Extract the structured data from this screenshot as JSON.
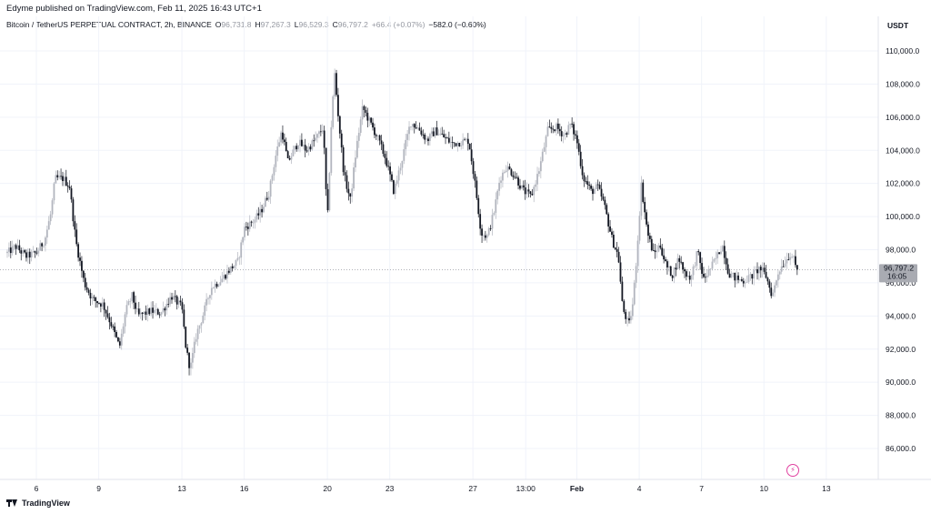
{
  "header": {
    "publisher": "Edyme published on TradingView.com, Feb 11, 2025 16:43 UTC+1"
  },
  "legend": {
    "symbol": "Bitcoin / TetherUS PERPETUAL CONTRACT, 2h, BINANCE",
    "open_key": "O",
    "open": "96,731.8",
    "high_key": "H",
    "high": "97,267.3",
    "low_key": "L",
    "low": "96,529.3",
    "close_key": "C",
    "close": "96,797.2",
    "change": "+66.4 (+0.07%)",
    "day_change": "−582.0 (−0.60%)"
  },
  "currency": "USDT",
  "price_tag": {
    "price": "96,797.2",
    "countdown": "16:05"
  },
  "footer": {
    "brand": "TradingView",
    "flash_icon": "lightning-icon"
  },
  "colors": {
    "up_candle": "#b2b5be",
    "down_candle": "#131722",
    "grid": "#f0f3fa",
    "price_tag": "#a9abb2"
  },
  "chart_data": {
    "type": "candlestick",
    "title": "",
    "interval": "2h",
    "ylim": [
      84500,
      111000
    ],
    "y_ticks": [
      "110,000.0",
      "108,000.0",
      "106,000.0",
      "104,000.0",
      "102,000.0",
      "100,000.0",
      "98,000.0",
      "96,000.0",
      "94,000.0",
      "92,000.0",
      "90,000.0",
      "88,000.0",
      "86,000.0"
    ],
    "x_ticks": [
      {
        "label": "6",
        "day": 6
      },
      {
        "label": "9",
        "day": 9
      },
      {
        "label": "13",
        "day": 13
      },
      {
        "label": "16",
        "day": 16
      },
      {
        "label": "20",
        "day": 20
      },
      {
        "label": "23",
        "day": 23
      },
      {
        "label": "27",
        "day": 27
      },
      {
        "label": "13:00",
        "day": 29.54
      },
      {
        "label": "Feb",
        "day": 32
      },
      {
        "label": "4",
        "day": 35
      },
      {
        "label": "7",
        "day": 38
      },
      {
        "label": "10",
        "day": 41
      },
      {
        "label": "13",
        "day": 44
      }
    ],
    "x_range_days": [
      4.6,
      46.5
    ],
    "last_day": 42.6,
    "price_path": [
      [
        4.6,
        97800
      ],
      [
        5.0,
        98200
      ],
      [
        5.5,
        97600
      ],
      [
        6.0,
        97800
      ],
      [
        6.4,
        98600
      ],
      [
        6.7,
        100200
      ],
      [
        6.9,
        102300
      ],
      [
        7.3,
        102300
      ],
      [
        7.6,
        101800
      ],
      [
        7.9,
        98500
      ],
      [
        8.3,
        96000
      ],
      [
        8.7,
        95000
      ],
      [
        9.2,
        94700
      ],
      [
        9.6,
        93500
      ],
      [
        10.0,
        92100
      ],
      [
        10.3,
        94300
      ],
      [
        10.6,
        95200
      ],
      [
        10.9,
        94000
      ],
      [
        11.5,
        94300
      ],
      [
        12.0,
        94200
      ],
      [
        12.5,
        95200
      ],
      [
        13.0,
        94500
      ],
      [
        13.2,
        92000
      ],
      [
        13.4,
        90800
      ],
      [
        13.7,
        92900
      ],
      [
        14.0,
        94000
      ],
      [
        14.4,
        95700
      ],
      [
        14.9,
        96200
      ],
      [
        15.3,
        96800
      ],
      [
        15.7,
        97300
      ],
      [
        16.0,
        99300
      ],
      [
        16.5,
        99800
      ],
      [
        16.8,
        100300
      ],
      [
        17.2,
        101500
      ],
      [
        17.5,
        103600
      ],
      [
        17.8,
        105200
      ],
      [
        18.1,
        103300
      ],
      [
        18.6,
        104500
      ],
      [
        19.0,
        104000
      ],
      [
        19.5,
        104800
      ],
      [
        19.8,
        105400
      ],
      [
        20.0,
        99600
      ],
      [
        20.2,
        106000
      ],
      [
        20.35,
        108600
      ],
      [
        20.5,
        106400
      ],
      [
        20.8,
        102500
      ],
      [
        21.1,
        101000
      ],
      [
        21.4,
        104200
      ],
      [
        21.7,
        106600
      ],
      [
        22.0,
        105800
      ],
      [
        22.4,
        104800
      ],
      [
        22.8,
        103500
      ],
      [
        23.2,
        101500
      ],
      [
        23.6,
        103500
      ],
      [
        24.0,
        105700
      ],
      [
        24.4,
        105300
      ],
      [
        24.8,
        104600
      ],
      [
        25.2,
        105200
      ],
      [
        25.6,
        104800
      ],
      [
        26.0,
        104400
      ],
      [
        26.4,
        104500
      ],
      [
        26.8,
        104600
      ],
      [
        27.1,
        102000
      ],
      [
        27.4,
        99000
      ],
      [
        27.7,
        98800
      ],
      [
        28.0,
        100200
      ],
      [
        28.3,
        102300
      ],
      [
        28.6,
        103000
      ],
      [
        29.0,
        102500
      ],
      [
        29.4,
        101600
      ],
      [
        29.8,
        101200
      ],
      [
        30.2,
        102900
      ],
      [
        30.6,
        105200
      ],
      [
        31.0,
        105400
      ],
      [
        31.4,
        104900
      ],
      [
        31.7,
        105600
      ],
      [
        32.0,
        104600
      ],
      [
        32.3,
        102400
      ],
      [
        32.7,
        101500
      ],
      [
        33.0,
        101800
      ],
      [
        33.3,
        100800
      ],
      [
        33.7,
        98600
      ],
      [
        34.0,
        97600
      ],
      [
        34.2,
        94500
      ],
      [
        34.5,
        93400
      ],
      [
        34.7,
        94800
      ],
      [
        34.9,
        98000
      ],
      [
        35.1,
        101900
      ],
      [
        35.4,
        99000
      ],
      [
        35.7,
        97700
      ],
      [
        36.0,
        98300
      ],
      [
        36.3,
        97000
      ],
      [
        36.6,
        96500
      ],
      [
        36.9,
        97500
      ],
      [
        37.2,
        96600
      ],
      [
        37.5,
        96300
      ],
      [
        37.8,
        97900
      ],
      [
        38.1,
        96200
      ],
      [
        38.4,
        96800
      ],
      [
        38.7,
        97500
      ],
      [
        39.0,
        98300
      ],
      [
        39.3,
        96600
      ],
      [
        39.6,
        96300
      ],
      [
        40.0,
        96100
      ],
      [
        40.4,
        96400
      ],
      [
        40.8,
        96900
      ],
      [
        41.1,
        96400
      ],
      [
        41.4,
        95200
      ],
      [
        41.7,
        96700
      ],
      [
        42.0,
        97300
      ],
      [
        42.3,
        97800
      ],
      [
        42.6,
        96800
      ]
    ]
  }
}
